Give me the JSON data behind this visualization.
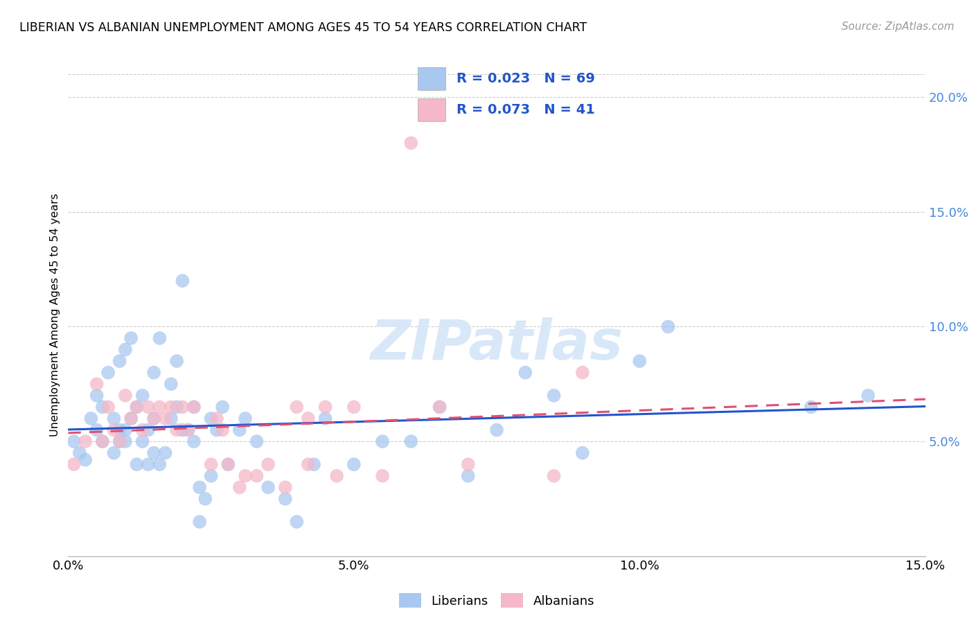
{
  "title": "LIBERIAN VS ALBANIAN UNEMPLOYMENT AMONG AGES 45 TO 54 YEARS CORRELATION CHART",
  "source": "Source: ZipAtlas.com",
  "ylabel": "Unemployment Among Ages 45 to 54 years",
  "xlim": [
    0.0,
    0.15
  ],
  "ylim": [
    0.0,
    0.21
  ],
  "xtick_vals": [
    0.0,
    0.05,
    0.1,
    0.15
  ],
  "xtick_labels": [
    "0.0%",
    "",
    "",
    "15.0%"
  ],
  "ytick_vals_right": [
    0.05,
    0.1,
    0.15,
    0.2
  ],
  "ytick_labels_right": [
    "5.0%",
    "10.0%",
    "15.0%",
    "20.0%"
  ],
  "liberian_R": 0.023,
  "liberian_N": 69,
  "albanian_R": 0.073,
  "albanian_N": 41,
  "liberian_color": "#A8C8F0",
  "albanian_color": "#F4B8C8",
  "liberian_line_color": "#2255CC",
  "albanian_line_color": "#E05070",
  "legend_text_color": "#2255CC",
  "watermark_color": "#D8E8F8",
  "watermark": "ZIPatlas",
  "liberian_x": [
    0.001,
    0.002,
    0.003,
    0.004,
    0.005,
    0.005,
    0.006,
    0.006,
    0.007,
    0.008,
    0.008,
    0.009,
    0.009,
    0.009,
    0.01,
    0.01,
    0.01,
    0.011,
    0.011,
    0.012,
    0.012,
    0.013,
    0.013,
    0.014,
    0.014,
    0.015,
    0.015,
    0.015,
    0.016,
    0.016,
    0.017,
    0.018,
    0.018,
    0.019,
    0.019,
    0.02,
    0.02,
    0.021,
    0.022,
    0.022,
    0.023,
    0.023,
    0.024,
    0.025,
    0.025,
    0.026,
    0.027,
    0.028,
    0.03,
    0.031,
    0.033,
    0.035,
    0.038,
    0.04,
    0.043,
    0.045,
    0.05,
    0.055,
    0.06,
    0.065,
    0.07,
    0.075,
    0.08,
    0.085,
    0.09,
    0.1,
    0.105,
    0.13,
    0.14
  ],
  "liberian_y": [
    0.05,
    0.045,
    0.042,
    0.06,
    0.055,
    0.07,
    0.05,
    0.065,
    0.08,
    0.045,
    0.06,
    0.05,
    0.055,
    0.085,
    0.05,
    0.055,
    0.09,
    0.06,
    0.095,
    0.04,
    0.065,
    0.05,
    0.07,
    0.04,
    0.055,
    0.045,
    0.06,
    0.08,
    0.04,
    0.095,
    0.045,
    0.06,
    0.075,
    0.065,
    0.085,
    0.055,
    0.12,
    0.055,
    0.05,
    0.065,
    0.015,
    0.03,
    0.025,
    0.035,
    0.06,
    0.055,
    0.065,
    0.04,
    0.055,
    0.06,
    0.05,
    0.03,
    0.025,
    0.015,
    0.04,
    0.06,
    0.04,
    0.05,
    0.05,
    0.065,
    0.035,
    0.055,
    0.08,
    0.07,
    0.045,
    0.085,
    0.1,
    0.065,
    0.07
  ],
  "albanian_x": [
    0.001,
    0.003,
    0.005,
    0.006,
    0.007,
    0.008,
    0.009,
    0.01,
    0.011,
    0.012,
    0.013,
    0.014,
    0.015,
    0.016,
    0.017,
    0.018,
    0.019,
    0.02,
    0.021,
    0.022,
    0.025,
    0.026,
    0.027,
    0.028,
    0.03,
    0.031,
    0.033,
    0.035,
    0.038,
    0.04,
    0.042,
    0.045,
    0.047,
    0.05,
    0.055,
    0.06,
    0.065,
    0.07,
    0.085,
    0.09,
    0.042
  ],
  "albanian_y": [
    0.04,
    0.05,
    0.075,
    0.05,
    0.065,
    0.055,
    0.05,
    0.07,
    0.06,
    0.065,
    0.055,
    0.065,
    0.06,
    0.065,
    0.06,
    0.065,
    0.055,
    0.065,
    0.055,
    0.065,
    0.04,
    0.06,
    0.055,
    0.04,
    0.03,
    0.035,
    0.035,
    0.04,
    0.03,
    0.065,
    0.06,
    0.065,
    0.035,
    0.065,
    0.035,
    0.18,
    0.065,
    0.04,
    0.035,
    0.08,
    0.04
  ]
}
